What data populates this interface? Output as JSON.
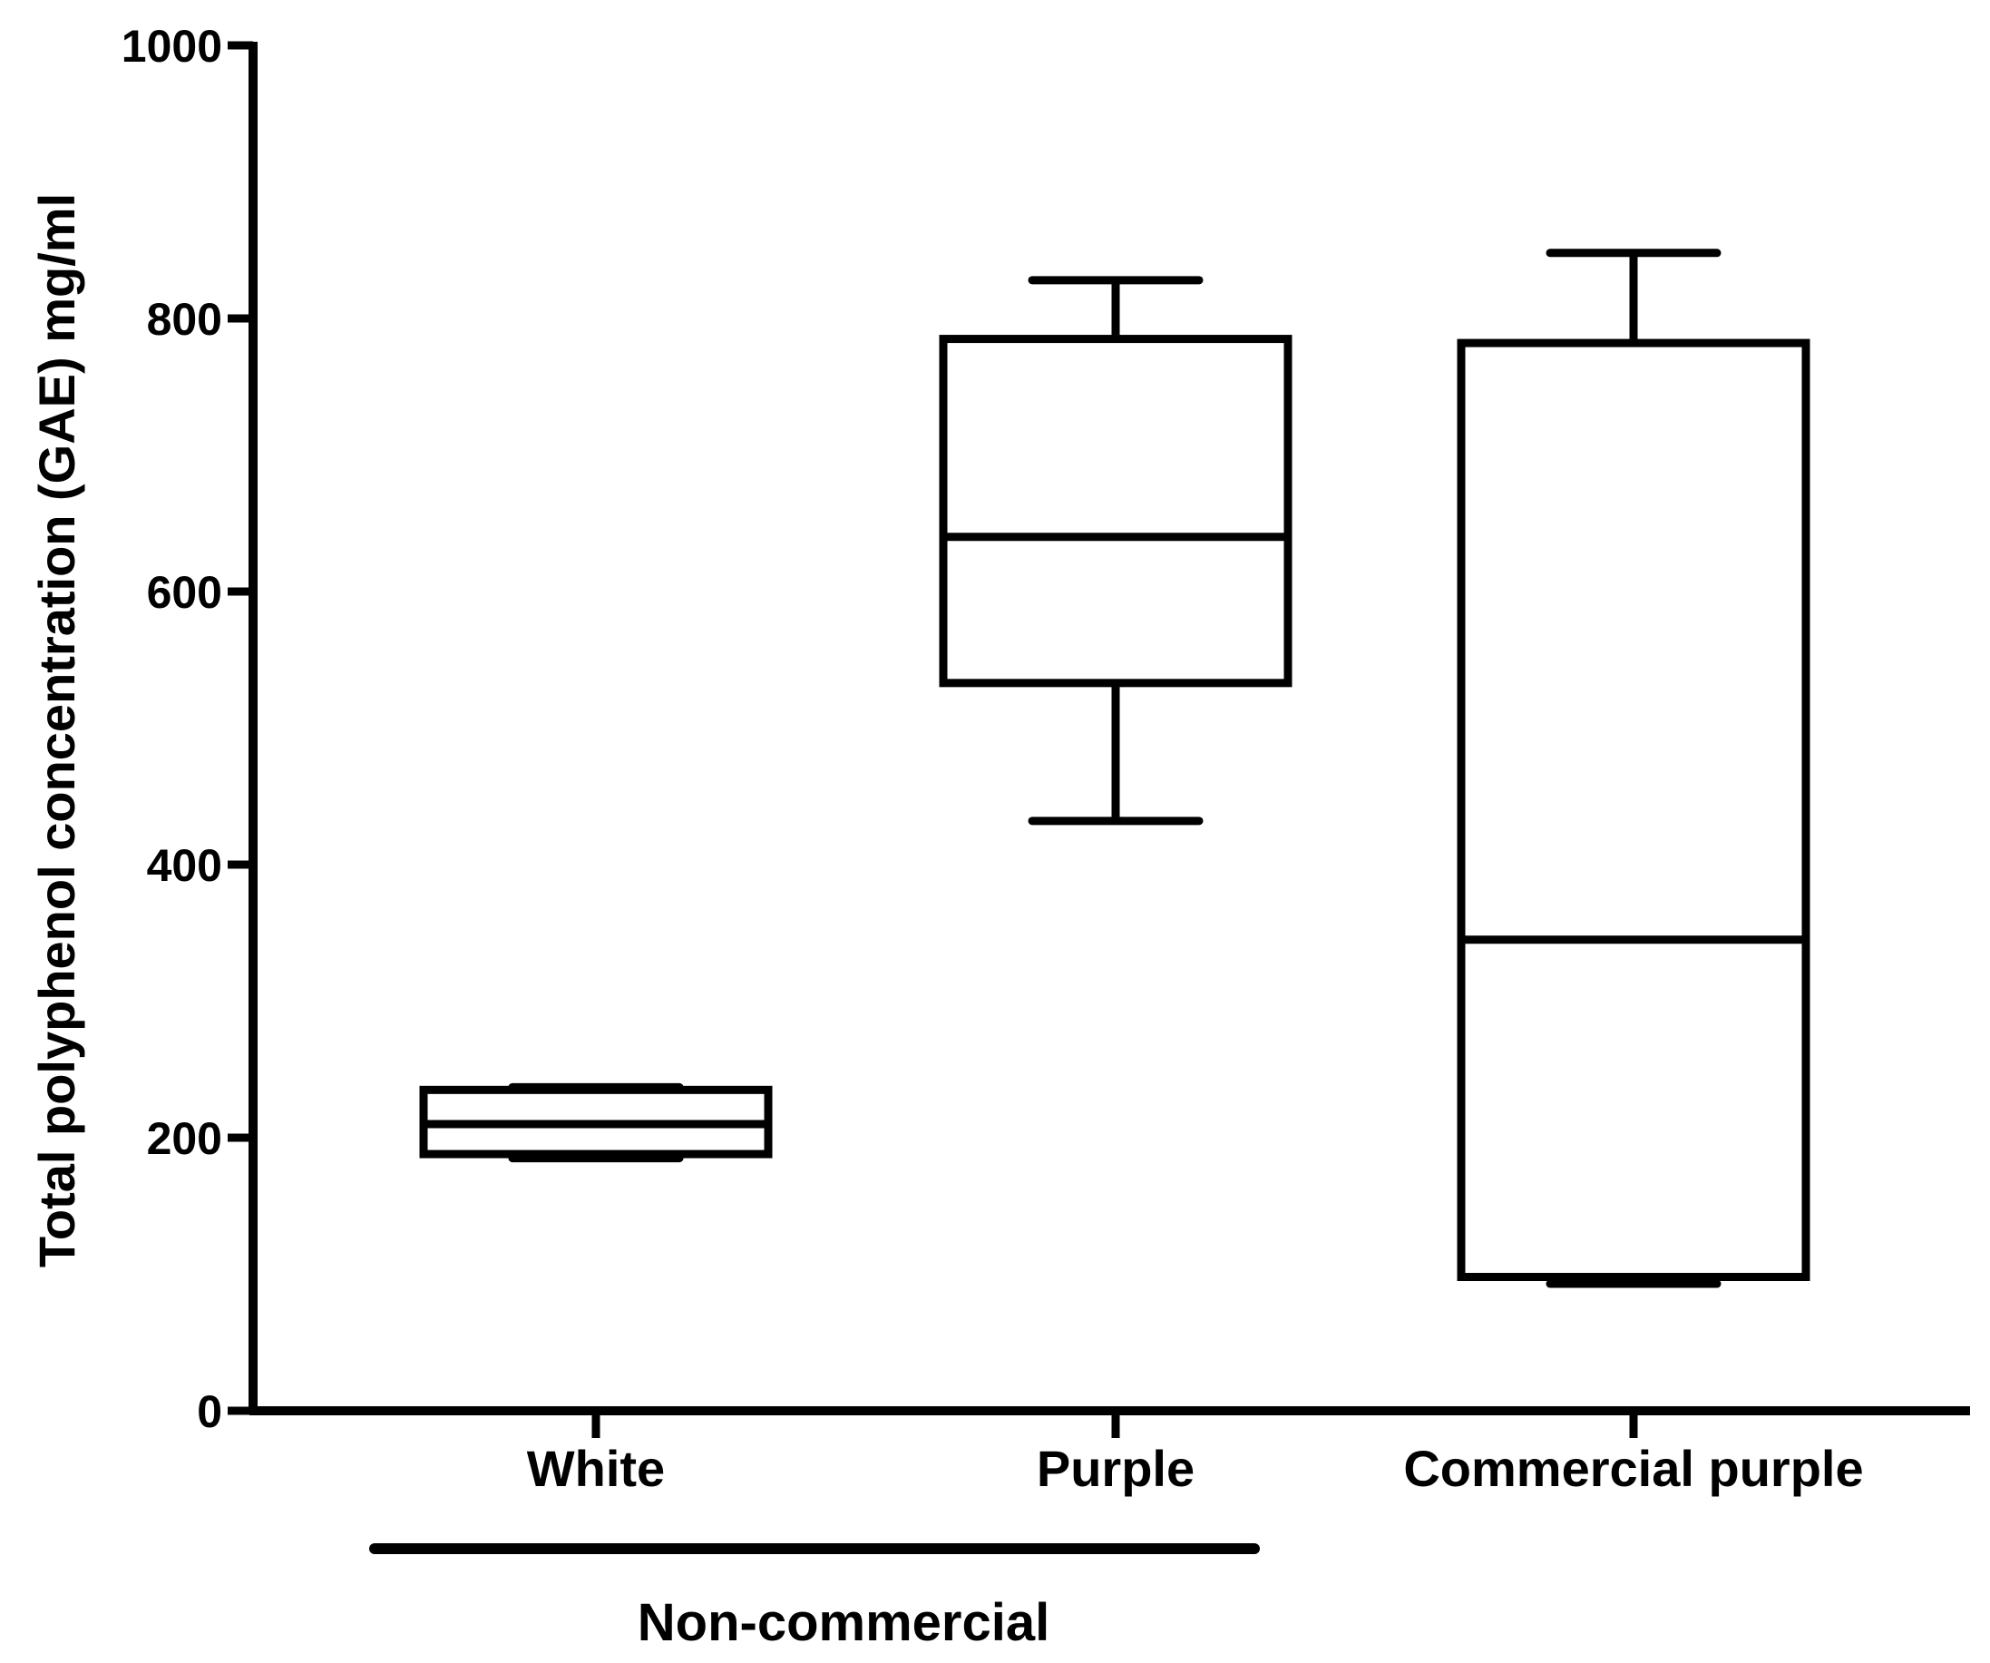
{
  "chart_data": {
    "type": "box",
    "ylabel": "Total polyphenol concentration (GAE) mg/ml",
    "xlabel": "",
    "ylim": [
      0,
      1000
    ],
    "yticks": [
      "0",
      "200",
      "400",
      "600",
      "800",
      "1000"
    ],
    "grid": false,
    "categories": [
      "White",
      "Purple",
      "Commercial purple"
    ],
    "boxes": [
      {
        "category": "White",
        "min": 185,
        "q1": 188,
        "median": 210,
        "q3": 235,
        "max": 237
      },
      {
        "category": "Purple",
        "min": 432,
        "q1": 533,
        "median": 640,
        "q3": 785,
        "max": 828
      },
      {
        "category": "Commercial purple",
        "min": 93,
        "q1": 98,
        "median": 345,
        "q3": 782,
        "max": 848
      }
    ],
    "group_label": "Non-commercial",
    "group_spans": [
      "White",
      "Purple"
    ]
  }
}
